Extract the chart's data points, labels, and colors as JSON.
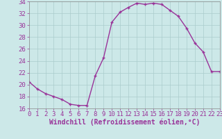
{
  "hours": [
    0,
    1,
    2,
    3,
    4,
    5,
    6,
    7,
    8,
    9,
    10,
    11,
    12,
    13,
    14,
    15,
    16,
    17,
    18,
    19,
    20,
    21,
    22,
    23
  ],
  "windchill": [
    20.5,
    19.3,
    18.5,
    18.0,
    17.5,
    16.7,
    16.5,
    16.5,
    21.5,
    24.5,
    30.5,
    32.2,
    33.0,
    33.7,
    33.5,
    33.7,
    33.5,
    32.5,
    31.5,
    29.5,
    27.0,
    25.5,
    22.2,
    22.2
  ],
  "line_color": "#993399",
  "marker": "+",
  "bg_color": "#cce8e8",
  "grid_color": "#aacccc",
  "text_color": "#993399",
  "xlabel": "Windchill (Refroidissement éolien,°C)",
  "ylim": [
    16,
    34
  ],
  "yticks": [
    16,
    18,
    20,
    22,
    24,
    26,
    28,
    30,
    32,
    34
  ],
  "xticks": [
    0,
    1,
    2,
    3,
    4,
    5,
    6,
    7,
    8,
    9,
    10,
    11,
    12,
    13,
    14,
    15,
    16,
    17,
    18,
    19,
    20,
    21,
    22,
    23
  ],
  "xlabel_fontsize": 7,
  "tick_fontsize": 6.5,
  "line_width": 1.0,
  "marker_size": 3.5,
  "marker_edge_width": 1.0
}
